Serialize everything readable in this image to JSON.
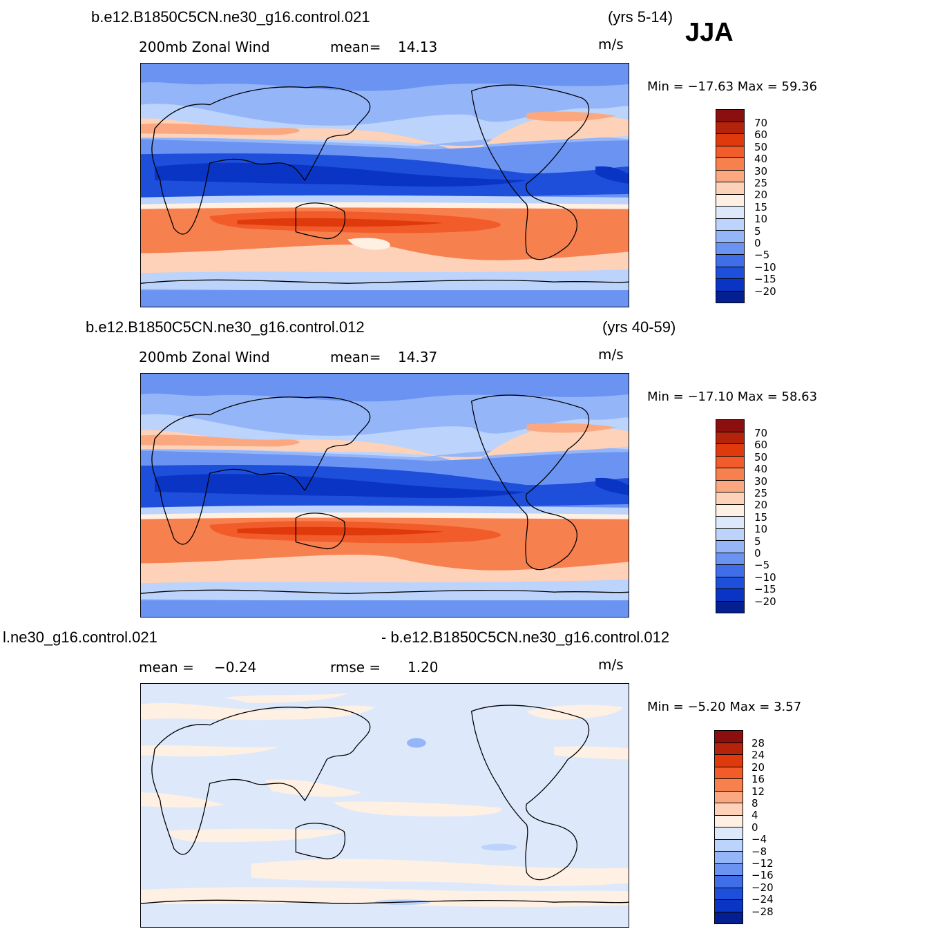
{
  "season": "JJA",
  "units": "m/s",
  "panels": [
    {
      "case": "b.e12.B1850C5CN.ne30_g16.control.021",
      "years": "(yrs 5-14)",
      "variable": "200mb  Zonal Wind",
      "stat_label": "mean=",
      "stat_value": "14.13",
      "minmax": "Min  =  −17.63  Max  =    59.36",
      "levels": [
        "70",
        "60",
        "50",
        "40",
        "30",
        "25",
        "20",
        "15",
        "10",
        "5",
        "0",
        "−5",
        "−10",
        "−15",
        "−20"
      ]
    },
    {
      "case": "b.e12.B1850C5CN.ne30_g16.control.012",
      "years": "(yrs 40-59)",
      "variable": "200mb  Zonal Wind",
      "stat_label": "mean=",
      "stat_value": "14.37",
      "minmax": "Min  =  −17.10  Max  =    58.63",
      "levels": [
        "70",
        "60",
        "50",
        "40",
        "30",
        "25",
        "20",
        "15",
        "10",
        "5",
        "0",
        "−5",
        "−10",
        "−15",
        "−20"
      ]
    },
    {
      "case_left": "l.ne30_g16.control.021",
      "case_right": "- b.e12.B1850C5CN.ne30_g16.control.012",
      "mean_label": "mean  =",
      "mean_value": "−0.24",
      "rmse_label": "rmse  =",
      "rmse_value": "1.20",
      "minmax": "Min  =    −5.20  Max  =      3.57",
      "levels": [
        "28",
        "24",
        "20",
        "16",
        "12",
        "8",
        "4",
        "0",
        "−4",
        "−8",
        "−12",
        "−16",
        "−20",
        "−24",
        "−28"
      ]
    }
  ],
  "colors": {
    "diverging": [
      "#8b0f0f",
      "#b5230b",
      "#e03a0c",
      "#f25c2a",
      "#f7804f",
      "#fba881",
      "#fdd2b8",
      "#fff0e4",
      "#dde9fb",
      "#bcd3fb",
      "#94b6f9",
      "#6b94f2",
      "#3f6ee8",
      "#1d4fdb",
      "#0a34c4",
      "#041f8f"
    ]
  }
}
